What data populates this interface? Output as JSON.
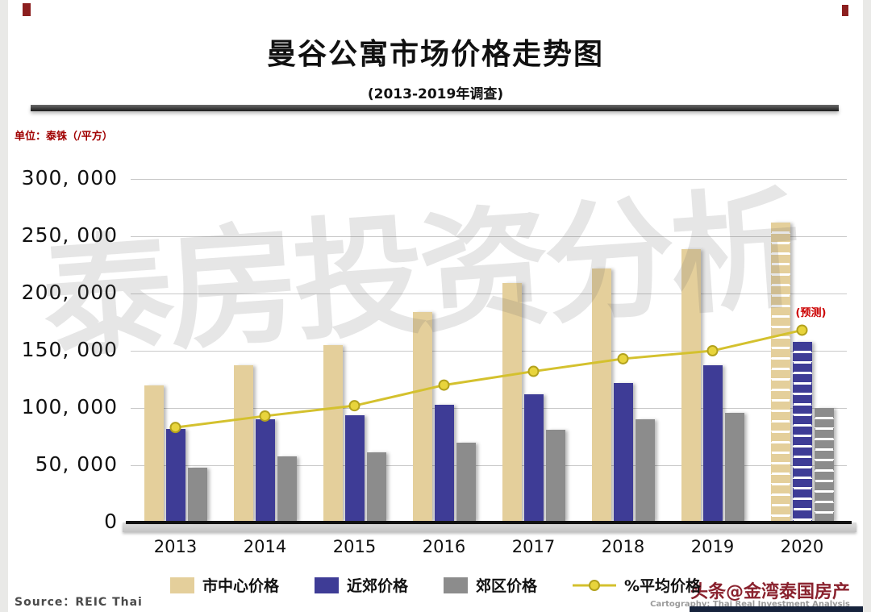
{
  "page": {
    "watermark": "泰房投资分析",
    "source": "Source：REIC Thai",
    "credit_main": "头条@金湾泰国房产",
    "credit_sub": "Cartography: Thai Real Investment Analysis"
  },
  "chart_data": {
    "type": "bar",
    "title": "曼谷公寓市场价格走势图",
    "subtitle": "(2013-2019年调查)",
    "unit_label": "单位：泰铢（/平方）",
    "xlabel": "",
    "ylabel": "泰铢/平方",
    "ylim": [
      0,
      300000
    ],
    "grid": true,
    "legend_position": "bottom",
    "categories": [
      "2013",
      "2014",
      "2015",
      "2016",
      "2017",
      "2018",
      "2019",
      "2020"
    ],
    "series": [
      {
        "name": "市中心价格",
        "color": "#e4cf9b",
        "values": [
          120000,
          137000,
          155000,
          184000,
          209000,
          222000,
          239000,
          262000
        ]
      },
      {
        "name": "近郊价格",
        "color": "#3e3c96",
        "values": [
          82000,
          90000,
          94000,
          103000,
          112000,
          122000,
          137000,
          158000
        ]
      },
      {
        "name": "郊区价格",
        "color": "#8c8c8c",
        "values": [
          48000,
          58000,
          61000,
          70000,
          81000,
          90000,
          96000,
          100000
        ]
      }
    ],
    "line_series": {
      "name": "%平均价格",
      "color": "#d4c12e",
      "marker_fill": "#e8d43c",
      "marker_ring": "#b3a21d",
      "values": [
        83000,
        93000,
        102000,
        120000,
        132000,
        143000,
        150000,
        168000
      ]
    },
    "forecast_category": "2020",
    "forecast_label": "(预测)",
    "ytick_labels": [
      "0",
      "50, 000",
      "100, 000",
      "150, 000",
      "200, 000",
      "250, 000",
      "300, 000"
    ]
  }
}
